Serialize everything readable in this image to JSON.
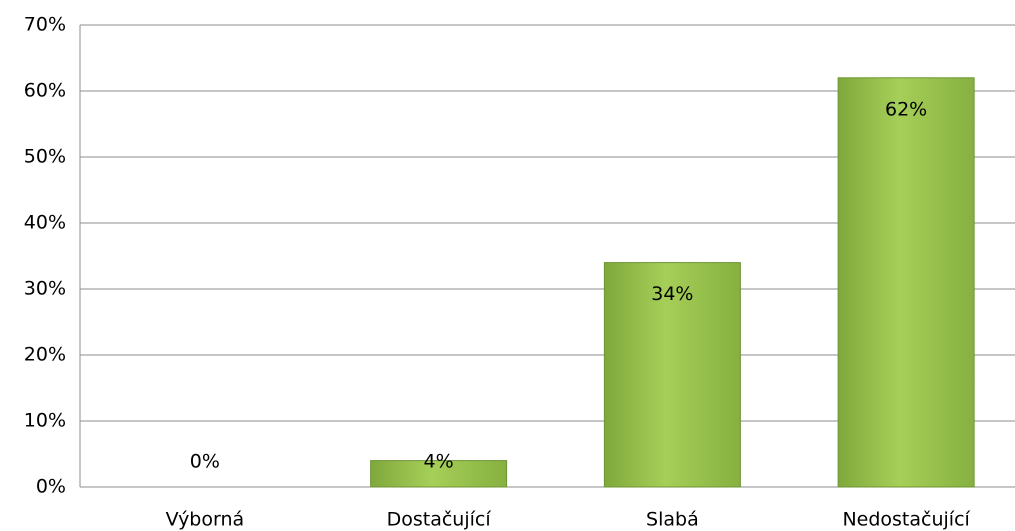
{
  "chart_data": {
    "type": "bar",
    "categories": [
      "Výborná",
      "Dostačující",
      "Slabá",
      "Nedostačující"
    ],
    "values": [
      0,
      4,
      34,
      62
    ],
    "value_labels": [
      "0%",
      "4%",
      "34%",
      "62%"
    ],
    "color": "#8fbc45",
    "ylim": [
      0,
      70
    ],
    "yticks": [
      {
        "value": 0,
        "label": "0%"
      },
      {
        "value": 10,
        "label": "10%"
      },
      {
        "value": 20,
        "label": "20%"
      },
      {
        "value": 30,
        "label": "30%"
      },
      {
        "value": 40,
        "label": "40%"
      },
      {
        "value": 50,
        "label": "50%"
      },
      {
        "value": 60,
        "label": "60%"
      },
      {
        "value": 70,
        "label": "70%"
      }
    ],
    "grid": true
  }
}
